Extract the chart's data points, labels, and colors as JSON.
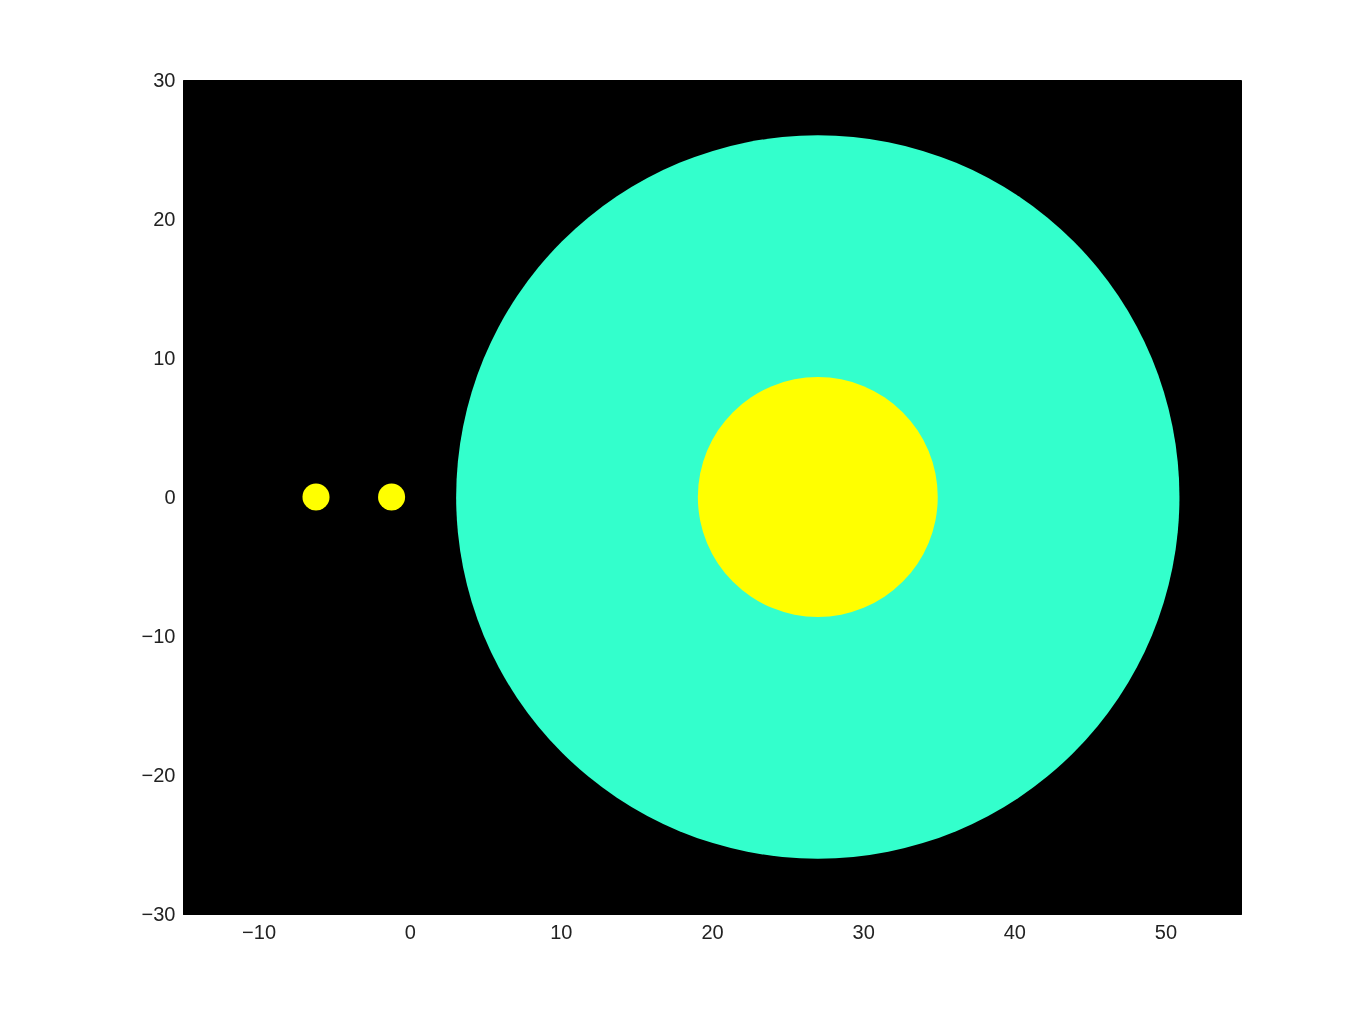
{
  "chart_data": {
    "type": "bubble",
    "xlim": [
      -15,
      55
    ],
    "ylim": [
      -30,
      30
    ],
    "xticks": [
      -10,
      0,
      10,
      20,
      30,
      40,
      50
    ],
    "yticks": [
      -30,
      -20,
      -10,
      0,
      10,
      20,
      30
    ],
    "grid": false,
    "series": [
      {
        "color": "#33ffcc",
        "x": [
          27
        ],
        "values": [
          0
        ],
        "sizes": [
          1
        ]
      },
      {
        "color": "#ffff00",
        "x": [
          27,
          -6.2,
          -1.2
        ],
        "values": [
          0,
          0,
          0
        ],
        "sizes": [
          0.11,
          0.0014,
          0.0014
        ]
      }
    ]
  }
}
